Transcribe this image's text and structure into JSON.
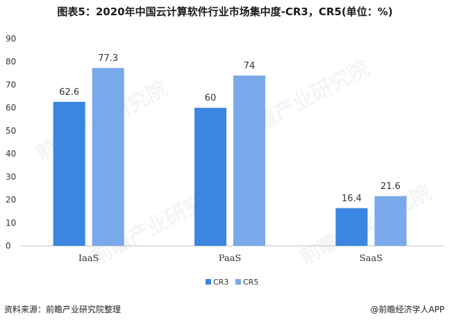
{
  "title": "图表5：2020年中国云计算软件行业市场集中度-CR3，CR5(单位：%)",
  "source_label": "资料来源：前瞻产业研究院整理",
  "credit_label": "@前瞻经济学人APP",
  "watermark": "前瞻产业研究院",
  "colors": {
    "CR3": "#3b86e0",
    "CR5": "#79a9ea",
    "axis": "#bfbfbf",
    "text": "#333333"
  },
  "chart_data": {
    "type": "bar",
    "title": "图表5：2020年中国云计算软件行业市场集中度-CR3，CR5(单位：%)",
    "xlabel": "",
    "ylabel": "",
    "categories": [
      "IaaS",
      "PaaS",
      "SaaS"
    ],
    "series": [
      {
        "name": "CR3",
        "values": [
          62.6,
          60,
          16.4
        ]
      },
      {
        "name": "CR5",
        "values": [
          77.3,
          74,
          21.6
        ]
      }
    ],
    "ylim": [
      0,
      90
    ],
    "yticks": [
      0,
      10,
      20,
      30,
      40,
      50,
      60,
      70,
      80,
      90
    ],
    "grid": false,
    "legend_position": "bottom"
  }
}
